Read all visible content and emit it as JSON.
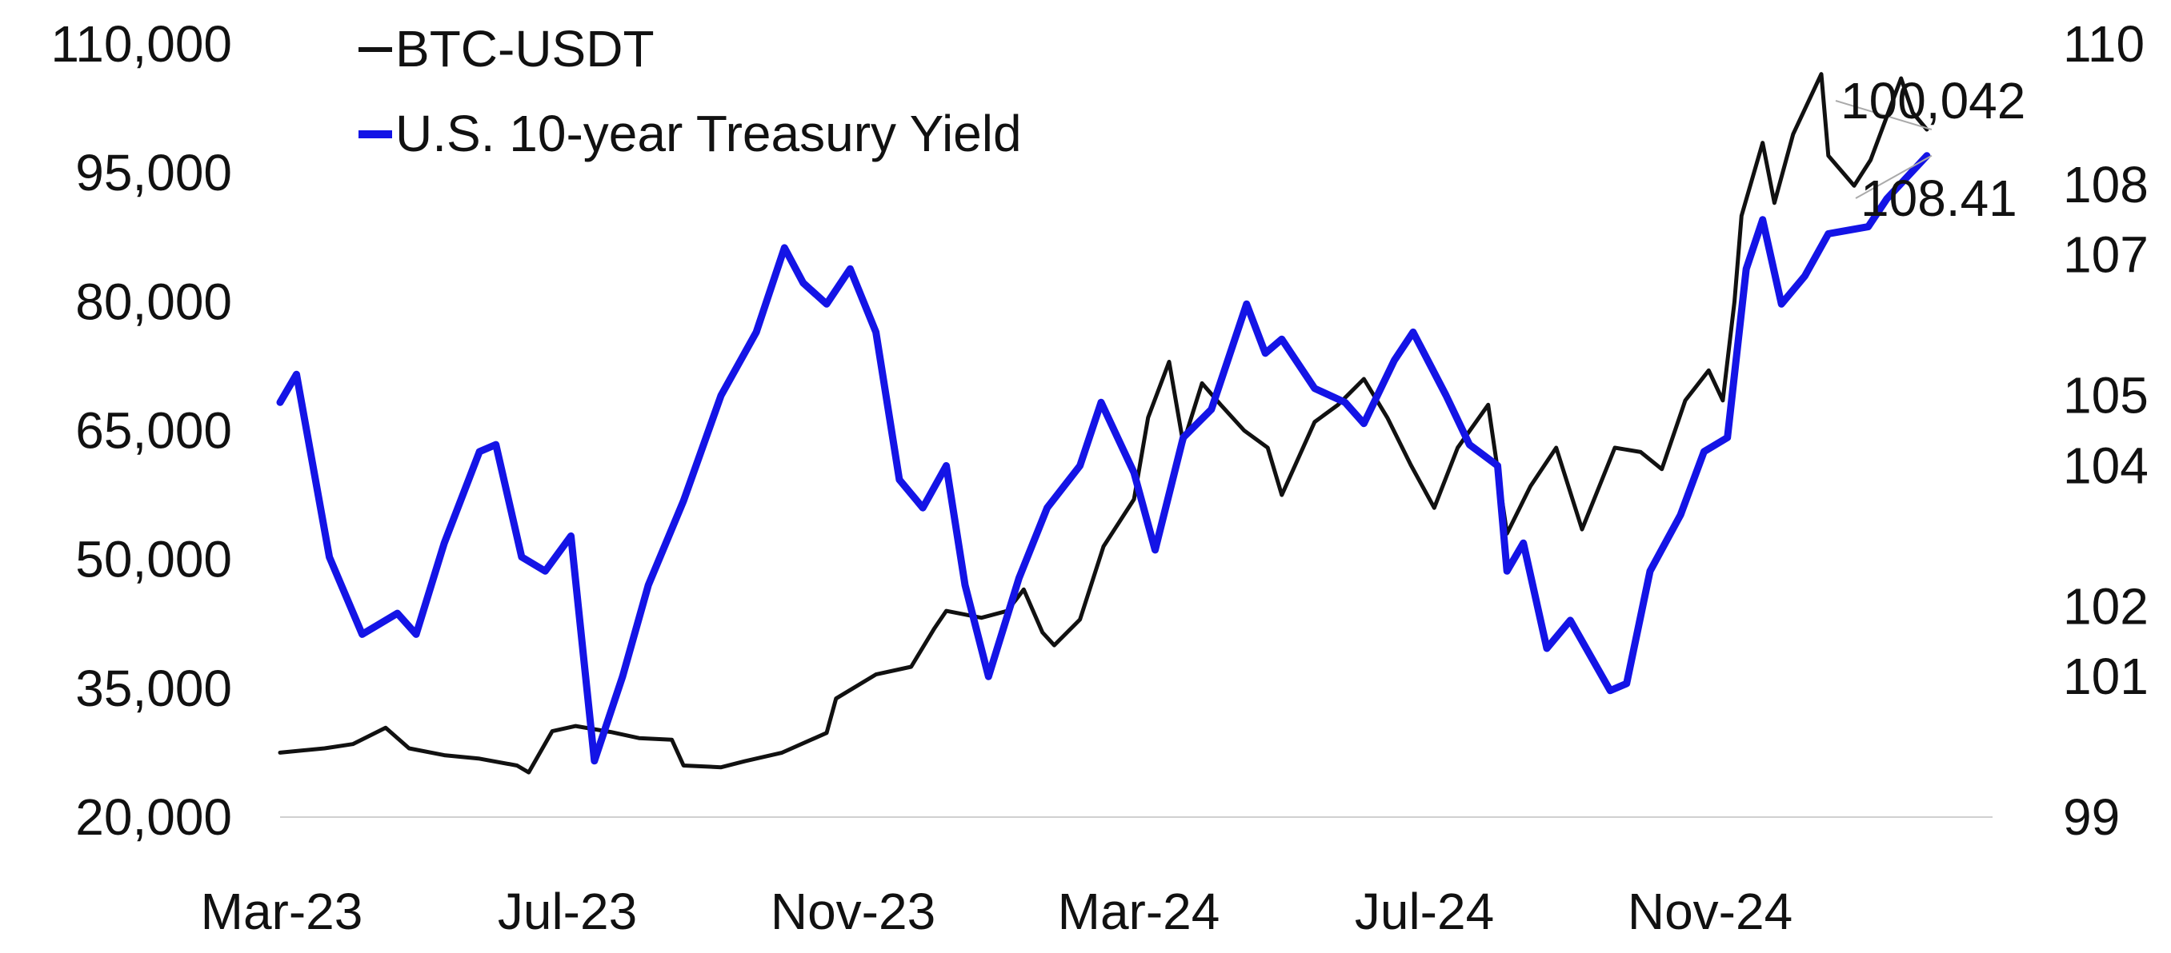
{
  "chart_data": {
    "type": "line",
    "title": "",
    "xlabel": "",
    "ylabel": "",
    "x_ticks": [
      "Mar-23",
      "Jul-23",
      "Nov-23",
      "Mar-24",
      "Jul-24",
      "Nov-24"
    ],
    "x_range": [
      "2023-03-01",
      "2025-02-28"
    ],
    "y_left": {
      "lim": [
        20000,
        110000
      ],
      "ticks": [
        "20,000",
        "35,000",
        "50,000",
        "65,000",
        "80,000",
        "95,000",
        "110,000"
      ]
    },
    "y_right": {
      "lim": [
        99,
        110
      ],
      "ticks": [
        "99",
        "101",
        "102",
        "104",
        "105",
        "107",
        "108",
        "110"
      ]
    },
    "legend_position": "top-left",
    "grid": false,
    "series": [
      {
        "name": "BTC-USDT",
        "axis": "left",
        "color": "#111111",
        "end_label": "100,042",
        "points": [
          [
            "2023-03-01",
            27500
          ],
          [
            "2023-03-20",
            28000
          ],
          [
            "2023-04-01",
            28500
          ],
          [
            "2023-04-15",
            30400
          ],
          [
            "2023-04-25",
            28000
          ],
          [
            "2023-05-10",
            27200
          ],
          [
            "2023-05-25",
            26800
          ],
          [
            "2023-06-10",
            26000
          ],
          [
            "2023-06-15",
            25200
          ],
          [
            "2023-06-25",
            30000
          ],
          [
            "2023-07-05",
            30600
          ],
          [
            "2023-07-20",
            29900
          ],
          [
            "2023-08-01",
            29200
          ],
          [
            "2023-08-15",
            29000
          ],
          [
            "2023-08-20",
            26000
          ],
          [
            "2023-09-05",
            25800
          ],
          [
            "2023-09-15",
            26500
          ],
          [
            "2023-10-01",
            27500
          ],
          [
            "2023-10-20",
            29800
          ],
          [
            "2023-10-24",
            33800
          ],
          [
            "2023-11-10",
            36600
          ],
          [
            "2023-11-25",
            37500
          ],
          [
            "2023-12-05",
            42000
          ],
          [
            "2023-12-10",
            44000
          ],
          [
            "2023-12-25",
            43200
          ],
          [
            "2024-01-05",
            44000
          ],
          [
            "2024-01-12",
            46500
          ],
          [
            "2024-01-20",
            41500
          ],
          [
            "2024-01-25",
            40000
          ],
          [
            "2024-02-05",
            43000
          ],
          [
            "2024-02-15",
            51500
          ],
          [
            "2024-02-28",
            57000
          ],
          [
            "2024-03-05",
            66500
          ],
          [
            "2024-03-14",
            73000
          ],
          [
            "2024-03-20",
            63500
          ],
          [
            "2024-03-28",
            70500
          ],
          [
            "2024-04-05",
            68000
          ],
          [
            "2024-04-15",
            65000
          ],
          [
            "2024-04-25",
            63000
          ],
          [
            "2024-05-01",
            57500
          ],
          [
            "2024-05-15",
            66000
          ],
          [
            "2024-05-25",
            68000
          ],
          [
            "2024-06-05",
            71000
          ],
          [
            "2024-06-15",
            66500
          ],
          [
            "2024-06-25",
            61000
          ],
          [
            "2024-07-05",
            56000
          ],
          [
            "2024-07-15",
            63000
          ],
          [
            "2024-07-28",
            68000
          ],
          [
            "2024-08-05",
            53000
          ],
          [
            "2024-08-15",
            58500
          ],
          [
            "2024-08-26",
            63000
          ],
          [
            "2024-09-06",
            53500
          ],
          [
            "2024-09-20",
            63000
          ],
          [
            "2024-10-01",
            62500
          ],
          [
            "2024-10-10",
            60500
          ],
          [
            "2024-10-20",
            68500
          ],
          [
            "2024-10-30",
            72000
          ],
          [
            "2024-11-05",
            68500
          ],
          [
            "2024-11-10",
            80000
          ],
          [
            "2024-11-13",
            90000
          ],
          [
            "2024-11-22",
            98500
          ],
          [
            "2024-11-27",
            91500
          ],
          [
            "2024-12-05",
            99500
          ],
          [
            "2024-12-17",
            106500
          ],
          [
            "2024-12-20",
            97000
          ],
          [
            "2024-12-31",
            93500
          ],
          [
            "2025-01-07",
            96500
          ],
          [
            "2025-01-20",
            106000
          ],
          [
            "2025-01-25",
            102000
          ],
          [
            "2025-01-31",
            100042
          ]
        ]
      },
      {
        "name": "U.S. 10-year Treasury Yield",
        "axis": "right",
        "color": "#1414e6",
        "end_label": "108.41",
        "points": [
          [
            "2023-03-01",
            104.9
          ],
          [
            "2023-03-08",
            105.3
          ],
          [
            "2023-03-22",
            102.7
          ],
          [
            "2023-04-05",
            101.6
          ],
          [
            "2023-04-20",
            101.9
          ],
          [
            "2023-04-28",
            101.6
          ],
          [
            "2023-05-10",
            102.9
          ],
          [
            "2023-05-25",
            104.2
          ],
          [
            "2023-06-01",
            104.3
          ],
          [
            "2023-06-12",
            102.7
          ],
          [
            "2023-06-22",
            102.5
          ],
          [
            "2023-07-03",
            103.0
          ],
          [
            "2023-07-13",
            99.8
          ],
          [
            "2023-07-25",
            101.0
          ],
          [
            "2023-08-05",
            102.3
          ],
          [
            "2023-08-20",
            103.5
          ],
          [
            "2023-09-05",
            105.0
          ],
          [
            "2023-09-20",
            105.9
          ],
          [
            "2023-10-02",
            107.1
          ],
          [
            "2023-10-10",
            106.6
          ],
          [
            "2023-10-20",
            106.3
          ],
          [
            "2023-10-30",
            106.8
          ],
          [
            "2023-11-10",
            105.9
          ],
          [
            "2023-11-20",
            103.8
          ],
          [
            "2023-11-30",
            103.4
          ],
          [
            "2023-12-10",
            104.0
          ],
          [
            "2023-12-18",
            102.3
          ],
          [
            "2023-12-28",
            101.0
          ],
          [
            "2024-01-10",
            102.4
          ],
          [
            "2024-01-22",
            103.4
          ],
          [
            "2024-02-05",
            104.0
          ],
          [
            "2024-02-14",
            104.9
          ],
          [
            "2024-02-28",
            103.9
          ],
          [
            "2024-03-08",
            102.8
          ],
          [
            "2024-03-20",
            104.4
          ],
          [
            "2024-04-01",
            104.8
          ],
          [
            "2024-04-16",
            106.3
          ],
          [
            "2024-04-24",
            105.6
          ],
          [
            "2024-05-01",
            105.8
          ],
          [
            "2024-05-15",
            105.1
          ],
          [
            "2024-05-28",
            104.9
          ],
          [
            "2024-06-05",
            104.6
          ],
          [
            "2024-06-18",
            105.5
          ],
          [
            "2024-06-26",
            105.9
          ],
          [
            "2024-07-10",
            105.0
          ],
          [
            "2024-07-20",
            104.3
          ],
          [
            "2024-08-01",
            104.0
          ],
          [
            "2024-08-05",
            102.5
          ],
          [
            "2024-08-12",
            102.9
          ],
          [
            "2024-08-22",
            101.4
          ],
          [
            "2024-09-01",
            101.8
          ],
          [
            "2024-09-18",
            100.8
          ],
          [
            "2024-09-25",
            100.9
          ],
          [
            "2024-10-05",
            102.5
          ],
          [
            "2024-10-18",
            103.3
          ],
          [
            "2024-10-28",
            104.2
          ],
          [
            "2024-11-07",
            104.4
          ],
          [
            "2024-11-15",
            106.8
          ],
          [
            "2024-11-22",
            107.5
          ],
          [
            "2024-11-30",
            106.3
          ],
          [
            "2024-12-10",
            106.7
          ],
          [
            "2024-12-20",
            107.3
          ],
          [
            "2025-01-06",
            107.4
          ],
          [
            "2025-01-14",
            107.8
          ],
          [
            "2025-01-31",
            108.41
          ]
        ]
      }
    ]
  }
}
